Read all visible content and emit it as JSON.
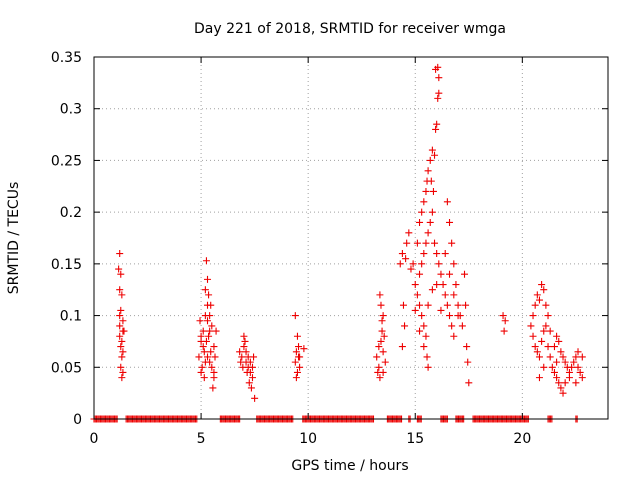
{
  "chart_data": {
    "type": "scatter",
    "title": "Day 221 of 2018, SRMTID for receiver wmga",
    "xlabel": "GPS time / hours",
    "ylabel": "SRMTID / TECUs",
    "xlim": [
      0,
      24
    ],
    "ylim": [
      0,
      0.35
    ],
    "xticks": [
      "0",
      "5",
      "10",
      "15",
      "20"
    ],
    "yticks": [
      "0",
      "0.05",
      "0.1",
      "0.15",
      "0.2",
      "0.25",
      "0.3",
      "0.35"
    ],
    "grid": true,
    "marker": "plus",
    "color": "#ee0000",
    "series": [
      {
        "name": "SRMTID",
        "points": [
          [
            1.2,
            0.16
          ],
          [
            1.15,
            0.145
          ],
          [
            1.25,
            0.14
          ],
          [
            1.2,
            0.125
          ],
          [
            1.3,
            0.12
          ],
          [
            1.25,
            0.105
          ],
          [
            1.2,
            0.1
          ],
          [
            1.35,
            0.085
          ],
          [
            1.2,
            0.08
          ],
          [
            1.3,
            0.075
          ],
          [
            1.25,
            0.07
          ],
          [
            1.35,
            0.065
          ],
          [
            1.3,
            0.06
          ],
          [
            1.25,
            0.05
          ],
          [
            1.35,
            0.045
          ],
          [
            1.3,
            0.04
          ],
          [
            1.4,
            0.085
          ],
          [
            1.35,
            0.095
          ],
          [
            1.2,
            0.09
          ],
          [
            4.9,
            0.06
          ],
          [
            5.0,
            0.08
          ],
          [
            5.1,
            0.07
          ],
          [
            5.2,
            0.1
          ],
          [
            5.25,
            0.153
          ],
          [
            5.3,
            0.135
          ],
          [
            5.35,
            0.12
          ],
          [
            5.4,
            0.085
          ],
          [
            5.5,
            0.09
          ],
          [
            5.45,
            0.11
          ],
          [
            5.6,
            0.07
          ],
          [
            5.0,
            0.045
          ],
          [
            5.2,
            0.055
          ],
          [
            5.3,
            0.06
          ],
          [
            5.5,
            0.05
          ],
          [
            5.6,
            0.04
          ],
          [
            5.55,
            0.03
          ],
          [
            5.7,
            0.085
          ],
          [
            4.95,
            0.095
          ],
          [
            5.05,
            0.05
          ],
          [
            5.15,
            0.065
          ],
          [
            5.25,
            0.075
          ],
          [
            5.35,
            0.08
          ],
          [
            5.45,
            0.065
          ],
          [
            5.65,
            0.06
          ],
          [
            5.1,
            0.085
          ],
          [
            5.3,
            0.095
          ],
          [
            5.4,
            0.1
          ],
          [
            5.2,
            0.125
          ],
          [
            5.3,
            0.11
          ],
          [
            5.15,
            0.04
          ],
          [
            5.0,
            0.075
          ],
          [
            5.4,
            0.055
          ],
          [
            5.6,
            0.045
          ],
          [
            6.8,
            0.065
          ],
          [
            6.9,
            0.06
          ],
          [
            7.0,
            0.08
          ],
          [
            7.1,
            0.055
          ],
          [
            7.2,
            0.05
          ],
          [
            7.3,
            0.045
          ],
          [
            7.4,
            0.04
          ],
          [
            7.35,
            0.03
          ],
          [
            7.5,
            0.02
          ],
          [
            7.0,
            0.07
          ],
          [
            7.1,
            0.065
          ],
          [
            7.2,
            0.06
          ],
          [
            6.95,
            0.05
          ],
          [
            7.25,
            0.035
          ],
          [
            7.4,
            0.05
          ],
          [
            7.05,
            0.075
          ],
          [
            7.15,
            0.045
          ],
          [
            7.3,
            0.055
          ],
          [
            6.85,
            0.055
          ],
          [
            7.45,
            0.06
          ],
          [
            9.4,
            0.1
          ],
          [
            9.5,
            0.08
          ],
          [
            9.45,
            0.065
          ],
          [
            9.55,
            0.06
          ],
          [
            9.4,
            0.055
          ],
          [
            9.6,
            0.05
          ],
          [
            9.5,
            0.045
          ],
          [
            9.45,
            0.04
          ],
          [
            9.55,
            0.07
          ],
          [
            9.8,
            0.068
          ],
          [
            9.6,
            0.06
          ],
          [
            13.2,
            0.06
          ],
          [
            13.3,
            0.07
          ],
          [
            13.35,
            0.12
          ],
          [
            13.4,
            0.11
          ],
          [
            13.5,
            0.1
          ],
          [
            13.45,
            0.085
          ],
          [
            13.4,
            0.075
          ],
          [
            13.3,
            0.05
          ],
          [
            13.5,
            0.045
          ],
          [
            13.6,
            0.055
          ],
          [
            13.35,
            0.04
          ],
          [
            13.5,
            0.065
          ],
          [
            13.45,
            0.095
          ],
          [
            13.25,
            0.045
          ],
          [
            13.55,
            0.08
          ],
          [
            14.3,
            0.15
          ],
          [
            14.4,
            0.16
          ],
          [
            14.45,
            0.11
          ],
          [
            14.5,
            0.09
          ],
          [
            14.4,
            0.07
          ],
          [
            14.55,
            0.155
          ],
          [
            14.6,
            0.17
          ],
          [
            14.7,
            0.18
          ],
          [
            14.8,
            0.145
          ],
          [
            14.9,
            0.15
          ],
          [
            15.0,
            0.13
          ],
          [
            15.1,
            0.12
          ],
          [
            15.2,
            0.11
          ],
          [
            15.3,
            0.1
          ],
          [
            15.4,
            0.09
          ],
          [
            15.5,
            0.08
          ],
          [
            15.55,
            0.06
          ],
          [
            15.6,
            0.05
          ],
          [
            15.1,
            0.17
          ],
          [
            15.2,
            0.19
          ],
          [
            15.3,
            0.2
          ],
          [
            15.4,
            0.21
          ],
          [
            15.5,
            0.22
          ],
          [
            15.55,
            0.23
          ],
          [
            15.6,
            0.24
          ],
          [
            15.7,
            0.25
          ],
          [
            15.8,
            0.26
          ],
          [
            15.9,
            0.255
          ],
          [
            15.75,
            0.23
          ],
          [
            15.85,
            0.22
          ],
          [
            15.95,
            0.28
          ],
          [
            16.0,
            0.285
          ],
          [
            16.05,
            0.31
          ],
          [
            16.1,
            0.315
          ],
          [
            15.95,
            0.338
          ],
          [
            16.05,
            0.34
          ],
          [
            16.1,
            0.33
          ],
          [
            15.2,
            0.14
          ],
          [
            15.3,
            0.15
          ],
          [
            15.4,
            0.16
          ],
          [
            15.5,
            0.17
          ],
          [
            15.6,
            0.18
          ],
          [
            15.7,
            0.19
          ],
          [
            15.8,
            0.2
          ],
          [
            15.9,
            0.17
          ],
          [
            16.0,
            0.16
          ],
          [
            16.1,
            0.15
          ],
          [
            16.2,
            0.14
          ],
          [
            16.3,
            0.13
          ],
          [
            16.4,
            0.12
          ],
          [
            16.5,
            0.11
          ],
          [
            16.6,
            0.1
          ],
          [
            16.7,
            0.09
          ],
          [
            16.8,
            0.08
          ],
          [
            16.5,
            0.21
          ],
          [
            16.6,
            0.19
          ],
          [
            16.7,
            0.17
          ],
          [
            16.8,
            0.15
          ],
          [
            16.9,
            0.13
          ],
          [
            17.0,
            0.11
          ],
          [
            17.1,
            0.1
          ],
          [
            17.2,
            0.09
          ],
          [
            17.3,
            0.14
          ],
          [
            17.35,
            0.11
          ],
          [
            17.4,
            0.07
          ],
          [
            17.45,
            0.055
          ],
          [
            17.5,
            0.035
          ],
          [
            15.0,
            0.105
          ],
          [
            15.2,
            0.085
          ],
          [
            15.4,
            0.07
          ],
          [
            15.6,
            0.11
          ],
          [
            15.8,
            0.125
          ],
          [
            16.0,
            0.13
          ],
          [
            16.2,
            0.105
          ],
          [
            16.4,
            0.16
          ],
          [
            16.6,
            0.14
          ],
          [
            16.8,
            0.12
          ],
          [
            17.0,
            0.1
          ],
          [
            19.1,
            0.1
          ],
          [
            19.2,
            0.095
          ],
          [
            19.15,
            0.085
          ],
          [
            20.4,
            0.09
          ],
          [
            20.5,
            0.1
          ],
          [
            20.6,
            0.11
          ],
          [
            20.7,
            0.12
          ],
          [
            20.8,
            0.115
          ],
          [
            20.9,
            0.13
          ],
          [
            21.0,
            0.125
          ],
          [
            21.1,
            0.11
          ],
          [
            21.2,
            0.1
          ],
          [
            20.5,
            0.08
          ],
          [
            20.6,
            0.07
          ],
          [
            20.7,
            0.065
          ],
          [
            20.8,
            0.06
          ],
          [
            20.9,
            0.075
          ],
          [
            21.0,
            0.085
          ],
          [
            21.1,
            0.09
          ],
          [
            21.2,
            0.07
          ],
          [
            21.3,
            0.06
          ],
          [
            21.4,
            0.05
          ],
          [
            21.5,
            0.045
          ],
          [
            21.6,
            0.04
          ],
          [
            21.7,
            0.035
          ],
          [
            21.8,
            0.03
          ],
          [
            21.9,
            0.025
          ],
          [
            21.5,
            0.07
          ],
          [
            21.6,
            0.08
          ],
          [
            21.7,
            0.075
          ],
          [
            21.8,
            0.065
          ],
          [
            21.9,
            0.06
          ],
          [
            22.0,
            0.055
          ],
          [
            22.1,
            0.05
          ],
          [
            22.2,
            0.045
          ],
          [
            22.3,
            0.05
          ],
          [
            22.4,
            0.055
          ],
          [
            22.5,
            0.06
          ],
          [
            22.6,
            0.05
          ],
          [
            22.7,
            0.045
          ],
          [
            22.8,
            0.04
          ],
          [
            20.8,
            0.04
          ],
          [
            21.0,
            0.05
          ],
          [
            22.2,
            0.04
          ],
          [
            22.5,
            0.035
          ],
          [
            22.8,
            0.06
          ],
          [
            21.3,
            0.085
          ],
          [
            21.6,
            0.055
          ],
          [
            22.0,
            0.035
          ],
          [
            22.6,
            0.065
          ]
        ],
        "baseline_segments": [
          [
            0,
            1.1
          ],
          [
            1.5,
            4.8
          ],
          [
            5.9,
            6.8
          ],
          [
            7.6,
            9.3
          ],
          [
            9.75,
            13.1
          ],
          [
            13.7,
            14.4
          ],
          [
            14.7,
            14.8
          ],
          [
            15.1,
            15.3
          ],
          [
            16.2,
            16.55
          ],
          [
            16.9,
            17.3
          ],
          [
            17.7,
            20.3
          ],
          [
            21.2,
            21.4
          ],
          [
            22.5,
            22.6
          ]
        ]
      }
    ]
  }
}
